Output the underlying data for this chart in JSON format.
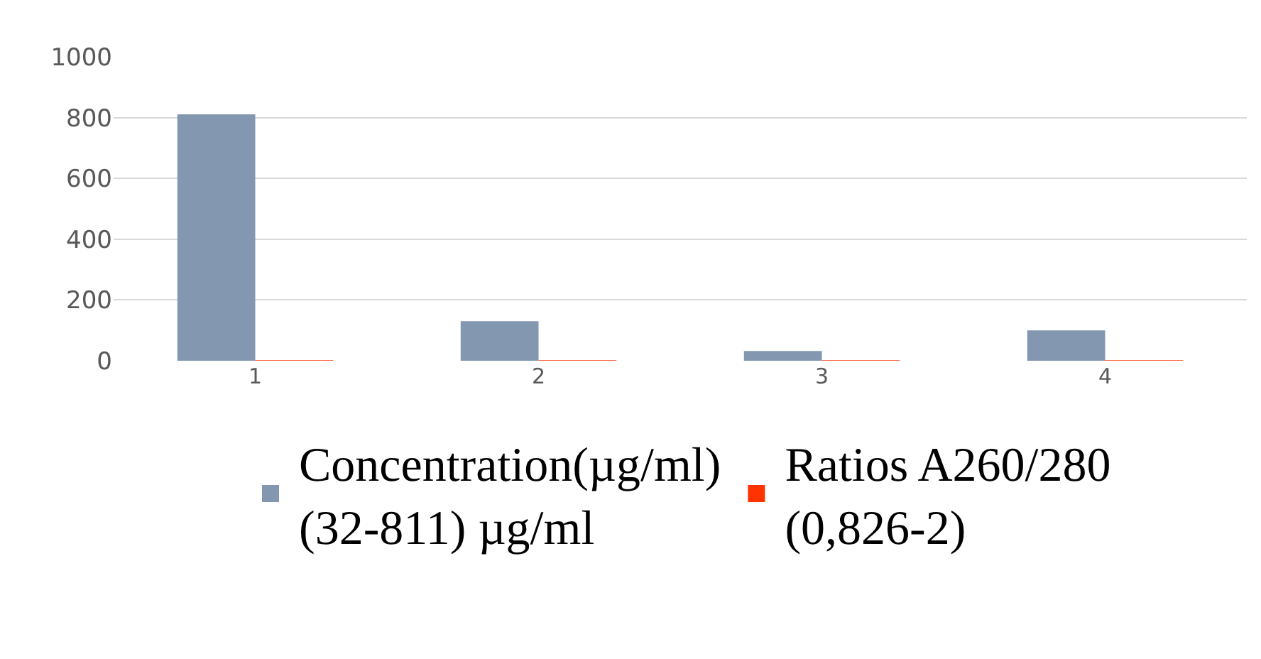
{
  "chart_data": {
    "type": "bar",
    "categories": [
      "1",
      "2",
      "3",
      "4"
    ],
    "series": [
      {
        "name": "Concentration(µg/ml)\n(32-811) µg/ml",
        "color": "#8497b0",
        "values": [
          811,
          130,
          32,
          100
        ]
      },
      {
        "name": "Ratios A260/280\n(0,826-2)",
        "color": "#ff3300",
        "values": [
          2,
          2,
          2,
          2
        ]
      }
    ],
    "ylim": [
      0,
      1000
    ],
    "yticks": [
      0,
      200,
      400,
      600,
      800,
      1000
    ],
    "grid": "y",
    "legend": "bottom"
  }
}
